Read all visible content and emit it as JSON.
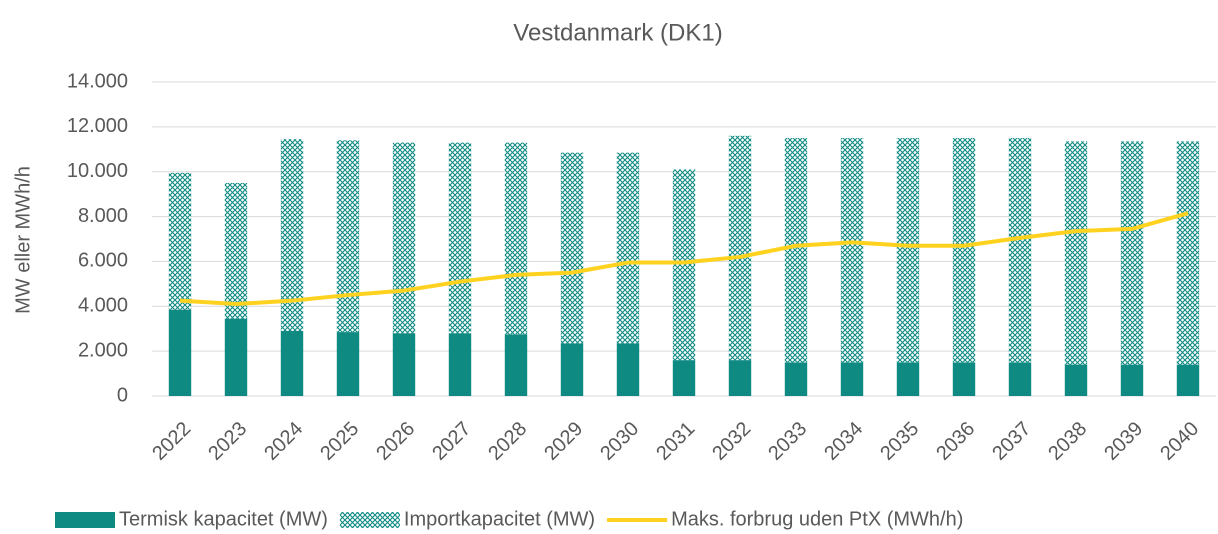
{
  "chart_data": {
    "type": "bar",
    "title": "Vestdanmark (DK1)",
    "y_label": "MW eller MWh/h",
    "categories": [
      "2022",
      "2023",
      "2024",
      "2025",
      "2026",
      "2027",
      "2028",
      "2029",
      "2030",
      "2031",
      "2032",
      "2033",
      "2034",
      "2035",
      "2036",
      "2037",
      "2038",
      "2039",
      "2040"
    ],
    "series": [
      {
        "name": "Termisk kapacitet (MW)",
        "kind": "bar",
        "color": "#0e8a82",
        "values": [
          3850,
          3450,
          2900,
          2850,
          2800,
          2800,
          2750,
          2350,
          2350,
          1600,
          1600,
          1500,
          1500,
          1500,
          1500,
          1500,
          1400,
          1400,
          1400
        ]
      },
      {
        "name": "Importkapacitet (MW)",
        "kind": "hatched-bar",
        "color": "#0e8a82",
        "values": [
          6100,
          6050,
          8550,
          8550,
          8500,
          8500,
          8550,
          8500,
          8500,
          8500,
          10000,
          10000,
          10000,
          10000,
          10000,
          10000,
          9950,
          9950,
          9950
        ]
      },
      {
        "name": "Maks. forbrug uden PtX (MWh/h)",
        "kind": "line",
        "color": "#ffd21f",
        "values": [
          4250,
          4100,
          4250,
          4500,
          4700,
          5100,
          5400,
          5500,
          5950,
          5950,
          6200,
          6700,
          6850,
          6700,
          6700,
          7050,
          7350,
          7450,
          8150
        ]
      }
    ],
    "ylim": [
      0,
      14000
    ],
    "yticks": [
      0,
      {
        "value": 2000,
        "label": "2.000"
      },
      {
        "value": 4000,
        "label": "4.000"
      },
      {
        "value": 6000,
        "label": "6.000"
      },
      {
        "value": 8000,
        "label": "8.000"
      },
      {
        "value": 10000,
        "label": "10.000"
      },
      {
        "value": 12000,
        "label": "12.000"
      },
      {
        "value": 14000,
        "label": "14.000"
      }
    ],
    "grid": true,
    "legend": "bottom"
  }
}
